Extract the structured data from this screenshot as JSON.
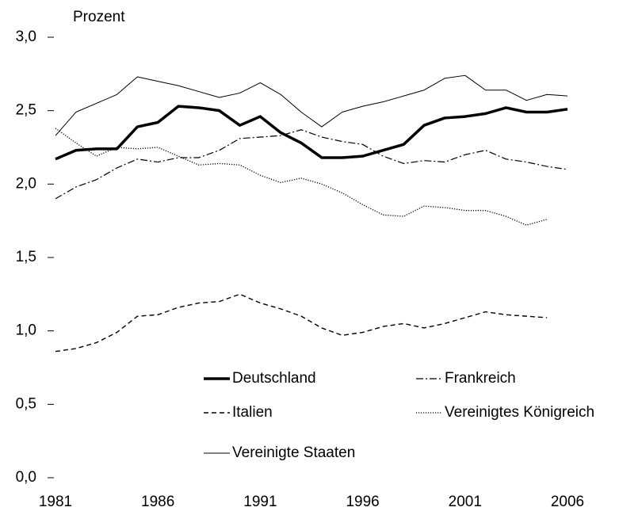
{
  "chart_data": {
    "type": "line",
    "ylabel": "Prozent",
    "x": [
      1981,
      1982,
      1983,
      1984,
      1985,
      1986,
      1987,
      1988,
      1989,
      1990,
      1991,
      1992,
      1993,
      1994,
      1995,
      1996,
      1997,
      1998,
      1999,
      2000,
      2001,
      2002,
      2003,
      2004,
      2005,
      2006
    ],
    "xlim": [
      1981,
      2006
    ],
    "xticks": [
      1981,
      1986,
      1991,
      1996,
      2001,
      2006
    ],
    "ylim": [
      0,
      3
    ],
    "yticks": [
      {
        "value": 0,
        "label": "0,0"
      },
      {
        "value": 0.5,
        "label": "0,5"
      },
      {
        "value": 1,
        "label": "1,0"
      },
      {
        "value": 1.5,
        "label": "1,5"
      },
      {
        "value": 2,
        "label": "2,0"
      },
      {
        "value": 2.5,
        "label": "2,5"
      },
      {
        "value": 3,
        "label": "3,0"
      }
    ],
    "series": [
      {
        "name": "Deutschland",
        "color": "#000000",
        "dash": "solid",
        "linewidth": 3.5,
        "values": [
          2.17,
          2.23,
          2.24,
          2.24,
          2.39,
          2.42,
          2.53,
          2.52,
          2.5,
          2.4,
          2.46,
          2.35,
          2.28,
          2.18,
          2.18,
          2.19,
          2.23,
          2.27,
          2.4,
          2.45,
          2.46,
          2.48,
          2.52,
          2.49,
          2.49,
          2.51
        ]
      },
      {
        "name": "Frankreich",
        "color": "#000000",
        "dash": "dashdot",
        "linewidth": 1.2,
        "values": [
          1.9,
          1.98,
          2.03,
          2.11,
          2.17,
          2.15,
          2.18,
          2.18,
          2.23,
          2.31,
          2.32,
          2.33,
          2.37,
          2.32,
          2.29,
          2.27,
          2.19,
          2.14,
          2.16,
          2.15,
          2.2,
          2.23,
          2.17,
          2.15,
          2.12,
          2.1
        ]
      },
      {
        "name": "Italien",
        "color": "#000000",
        "dash": "dashed",
        "linewidth": 1.4,
        "values": [
          0.86,
          0.88,
          0.92,
          0.99,
          1.1,
          1.11,
          1.16,
          1.19,
          1.2,
          1.25,
          1.19,
          1.15,
          1.1,
          1.02,
          0.97,
          0.99,
          1.03,
          1.05,
          1.02,
          1.05,
          1.09,
          1.13,
          1.11,
          1.1,
          1.09,
          null
        ]
      },
      {
        "name": "Vereinigtes Königreich",
        "color": "#000000",
        "dash": "dotted",
        "linewidth": 1.3,
        "values": [
          2.38,
          2.28,
          2.19,
          2.25,
          2.24,
          2.25,
          2.19,
          2.13,
          2.14,
          2.13,
          2.06,
          2.01,
          2.04,
          2.0,
          1.94,
          1.86,
          1.79,
          1.78,
          1.85,
          1.84,
          1.82,
          1.82,
          1.78,
          1.72,
          1.76,
          null
        ]
      },
      {
        "name": "Vereinigte Staaten",
        "color": "#000000",
        "dash": "solid",
        "linewidth": 1,
        "values": [
          2.33,
          2.49,
          2.55,
          2.61,
          2.73,
          2.7,
          2.67,
          2.63,
          2.59,
          2.62,
          2.69,
          2.61,
          2.49,
          2.39,
          2.49,
          2.53,
          2.56,
          2.6,
          2.64,
          2.72,
          2.74,
          2.64,
          2.64,
          2.57,
          2.61,
          2.6
        ]
      }
    ]
  }
}
